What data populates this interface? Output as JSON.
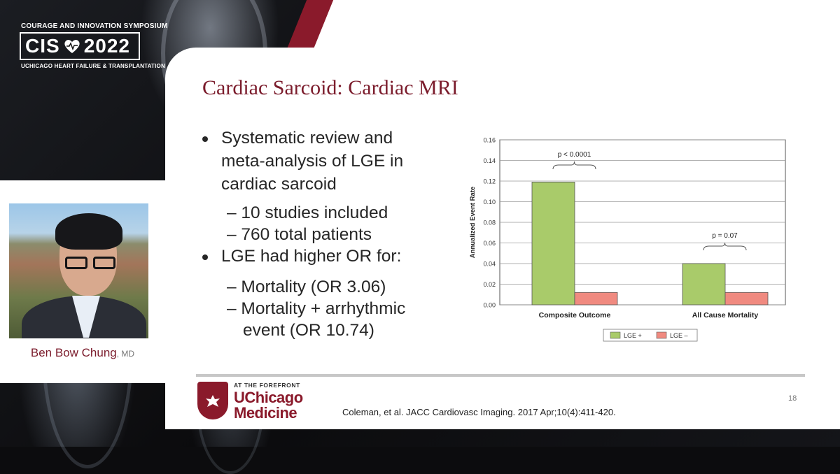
{
  "symposium": {
    "header": "COURAGE AND INNOVATION SYMPOSIUM",
    "left": "CIS",
    "right": "2022",
    "footer": "UCHICAGO HEART FAILURE & TRANSPLANTATION"
  },
  "speaker": {
    "name": "Ben Bow Chung",
    "suffix": ", MD"
  },
  "slide": {
    "title": "Cardiac Sarcoid: Cardiac MRI",
    "bullets": [
      {
        "lines": [
          "Systematic review and",
          "meta-analysis of LGE in",
          "cardiac sarcoid"
        ]
      },
      {
        "sub": [
          "– 10 studies included",
          "– 760 total patients"
        ]
      },
      {
        "lines": [
          "LGE had higher OR for:"
        ]
      },
      {
        "sub": [
          "– Mortality (OR 3.06)",
          "– Mortality + arrhythmic",
          "event (OR 10.74)"
        ]
      }
    ],
    "citation": "Coleman, et al. JACC Cardiovasc Imaging. 2017 Apr;10(4):411-420.",
    "page_number": "18"
  },
  "logo": {
    "forefront": "AT THE FOREFRONT",
    "line1": "UChicago",
    "line2": "Medicine"
  },
  "chart_data": {
    "type": "bar",
    "categories": [
      "Composite Outcome",
      "All Cause Mortality"
    ],
    "series": [
      {
        "name": "LGE +",
        "values": [
          0.119,
          0.04
        ],
        "color": "#a9cb6a"
      },
      {
        "name": "LGE –",
        "values": [
          0.012,
          0.012
        ],
        "color": "#f08a80"
      }
    ],
    "ylabel": "Annualized Event Rate",
    "ylim": [
      0,
      0.16
    ],
    "yticks": [
      "0.00",
      "0.02",
      "0.04",
      "0.06",
      "0.08",
      "0.10",
      "0.12",
      "0.14",
      "0.16"
    ],
    "annotations": [
      "p < 0.0001",
      "p = 0.07"
    ],
    "grid": true,
    "legend": "bottom"
  }
}
